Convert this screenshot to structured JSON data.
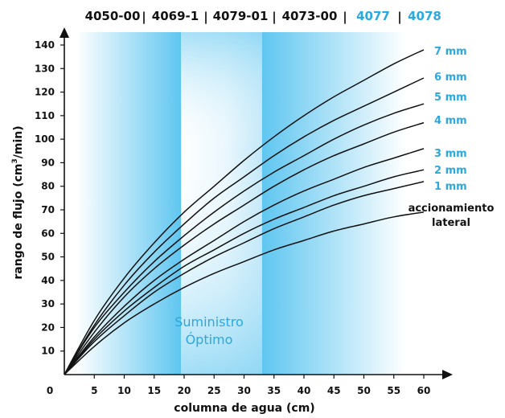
{
  "chart_data": {
    "type": "line",
    "xlabel": "columna de agua (cm)",
    "ylabel_main": "rango de flujo (cm",
    "ylabel_sup": "3",
    "ylabel_end": "/min)",
    "xlim": [
      0,
      60
    ],
    "ylim": [
      0,
      140
    ],
    "x_ticks": [
      0,
      5,
      10,
      15,
      20,
      25,
      30,
      35,
      40,
      45,
      50,
      55,
      60
    ],
    "y_ticks": [
      10,
      20,
      30,
      40,
      50,
      60,
      70,
      80,
      90,
      100,
      110,
      120,
      130,
      140
    ],
    "x": [
      0,
      5,
      10,
      15,
      20,
      25,
      30,
      35,
      40,
      45,
      50,
      55,
      60
    ],
    "series": [
      {
        "name": "7 mm",
        "values": [
          0,
          23,
          41,
          56,
          69,
          80,
          91,
          101,
          110,
          118,
          125,
          132,
          138
        ]
      },
      {
        "name": "6 mm",
        "values": [
          0,
          21,
          38,
          52,
          64,
          75,
          84,
          93,
          101,
          108,
          114,
          120,
          126
        ]
      },
      {
        "name": "5 mm",
        "values": [
          0,
          20,
          35,
          48,
          59,
          69,
          78,
          86,
          93,
          100,
          106,
          111,
          115
        ]
      },
      {
        "name": "4 mm",
        "values": [
          0,
          18,
          33,
          45,
          55,
          64,
          72,
          80,
          87,
          93,
          98,
          103,
          107
        ]
      },
      {
        "name": "3 mm",
        "values": [
          0,
          16,
          29,
          40,
          49,
          57,
          65,
          72,
          78,
          83,
          88,
          92,
          96
        ]
      },
      {
        "name": "2 mm",
        "values": [
          0,
          15,
          27,
          37,
          46,
          53,
          60,
          66,
          71,
          76,
          80,
          84,
          87
        ]
      },
      {
        "name": "1 mm",
        "values": [
          0,
          14,
          25,
          35,
          43,
          50,
          56,
          62,
          67,
          72,
          76,
          79,
          82
        ]
      },
      {
        "name_line1": "accionamiento",
        "name_line2": "lateral",
        "values": [
          0,
          12,
          22,
          30,
          37,
          43,
          48,
          53,
          57,
          61,
          64,
          67,
          69
        ]
      }
    ],
    "zone_label_line1": "Suministro",
    "zone_label_line2": "Óptimo",
    "optimum_range": [
      19.5,
      33
    ],
    "models": [
      {
        "label": "4050-00",
        "color": "#111111"
      },
      {
        "label": "4069-1",
        "color": "#111111"
      },
      {
        "label": "4079-01",
        "color": "#111111"
      },
      {
        "label": "4073-00",
        "color": "#111111"
      },
      {
        "label": "4077",
        "color": "#29a9e1"
      },
      {
        "label": "4078",
        "color": "#29a9e1"
      }
    ],
    "separators": [
      "|",
      "|",
      "|",
      "|",
      "|"
    ],
    "label_colors": {
      "7 mm": "#29a9e1",
      "6 mm": "#29a9e1",
      "5 mm": "#29a9e1",
      "4 mm": "#29a9e1",
      "3 mm": "#29a9e1",
      "2 mm": "#29a9e1",
      "1 mm": "#29a9e1",
      "lateral": "#111111"
    },
    "grid": false
  }
}
